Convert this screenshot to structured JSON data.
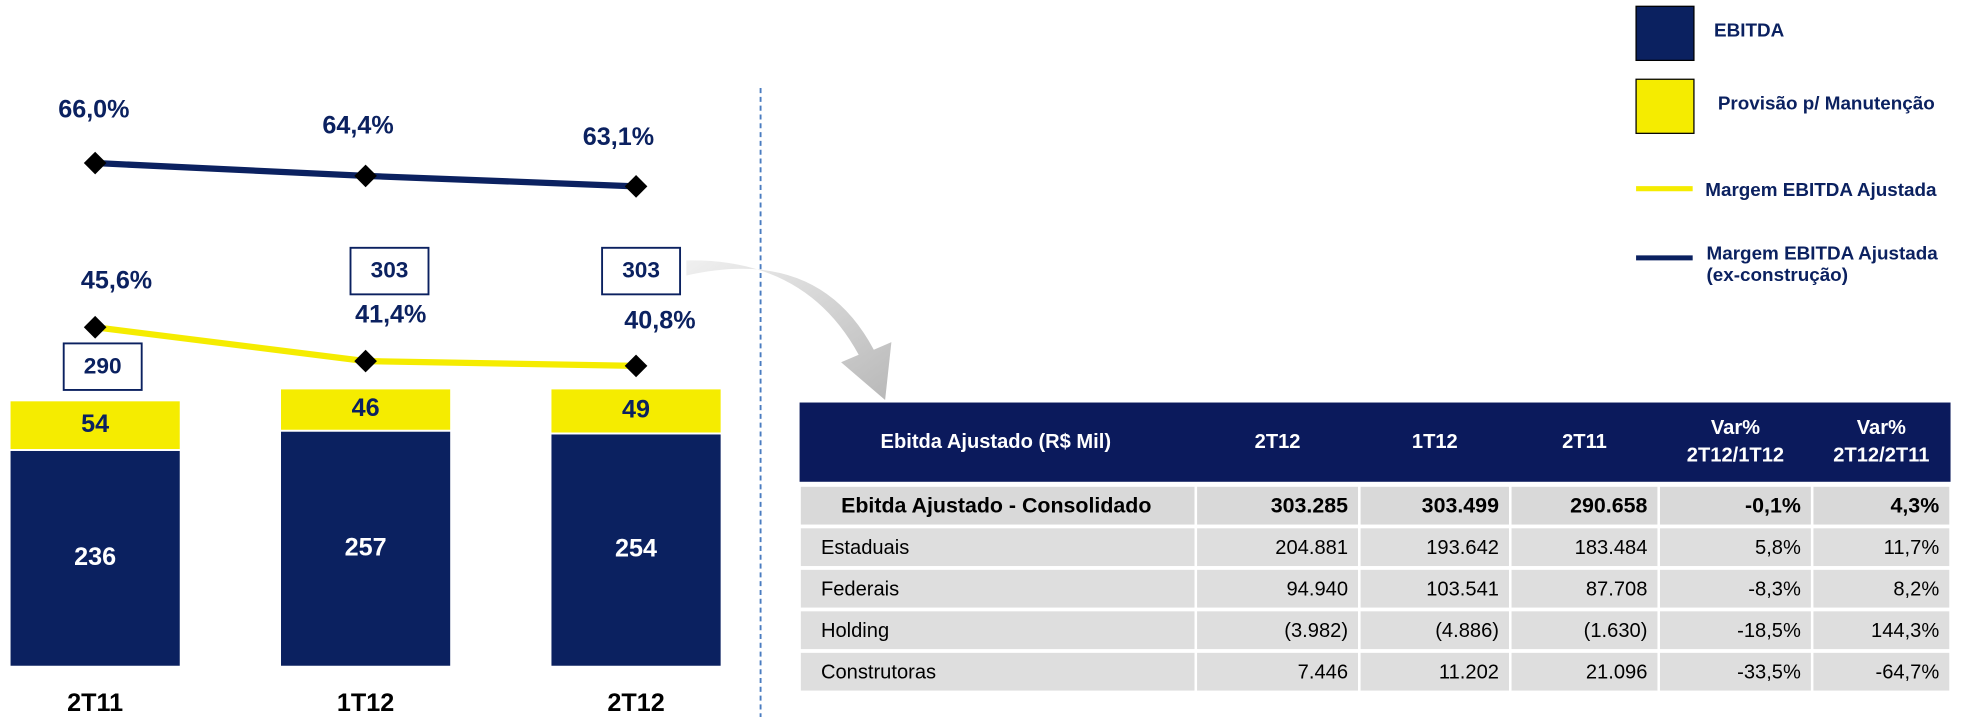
{
  "chart_data": {
    "type": "bar",
    "stacked": true,
    "categories": [
      "2T11",
      "1T12",
      "2T12"
    ],
    "series": [
      {
        "name": "EBITDA",
        "color": "#0b2160",
        "values": [
          236,
          257,
          254
        ]
      },
      {
        "name": "Provisão p/ Manutenção",
        "color": "#f5ec00",
        "values": [
          54,
          46,
          49
        ]
      }
    ],
    "totals": [
      290,
      303,
      303
    ],
    "lines": [
      {
        "name": "Margem EBITDA Ajustada",
        "color": "#f5ec00",
        "values": [
          45.6,
          41.4,
          40.8
        ],
        "value_labels": [
          "45,6%",
          "41,4%",
          "40,8%"
        ]
      },
      {
        "name": "Margem EBITDA Ajustada (ex-construção)",
        "color": "#0b2160",
        "values": [
          66.0,
          64.4,
          63.1
        ],
        "value_labels": [
          "66,0%",
          "64,4%",
          "63,1%"
        ]
      }
    ]
  },
  "table": {
    "header": [
      "Ebitda Ajustado (R$ Mil)",
      "2T12",
      "1T12",
      "2T11",
      "Var% 2T12/1T12",
      "Var% 2T12/2T11"
    ],
    "rows": [
      [
        "Ebitda Ajustado - Consolidado",
        "303.285",
        "303.499",
        "290.658",
        "-0,1%",
        "4,3%"
      ],
      [
        "Estaduais",
        "204.881",
        "193.642",
        "183.484",
        "5,8%",
        "11,7%"
      ],
      [
        "Federais",
        "94.940",
        "103.541",
        "87.708",
        "-8,3%",
        "8,2%"
      ],
      [
        "Holding",
        "(3.982)",
        "(4.886)",
        "(1.630)",
        "-18,5%",
        "144,3%"
      ],
      [
        "Construtoras",
        "7.446",
        "11.202",
        "21.096",
        "-33,5%",
        "-64,7%"
      ]
    ]
  }
}
